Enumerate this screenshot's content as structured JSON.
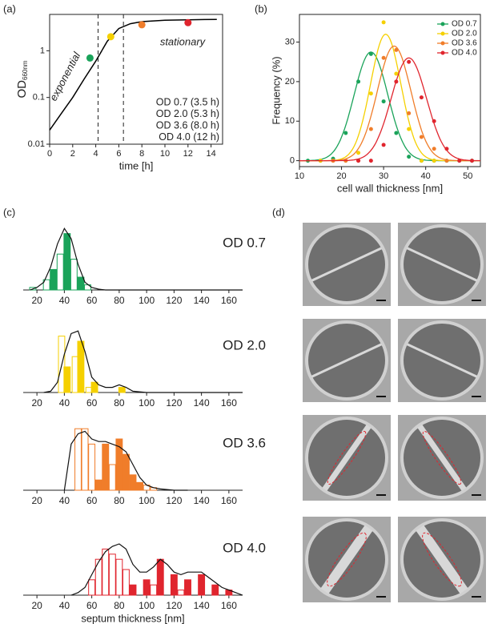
{
  "chart_data": [
    {
      "type": "line",
      "panel_label": "(a)",
      "xlabel": "time [h]",
      "ylabel": "OD",
      "ylabel_sub": "660nm",
      "log_y": true,
      "xlim": [
        0,
        15
      ],
      "ylim": [
        0.01,
        6
      ],
      "xticks": [
        0,
        2,
        4,
        6,
        8,
        10,
        12,
        14
      ],
      "yticks": [
        0.01,
        0.1,
        1
      ],
      "x": [
        0,
        1,
        2,
        3,
        4,
        5,
        6,
        7,
        8,
        10,
        12,
        14.5
      ],
      "values": [
        0.02,
        0.045,
        0.1,
        0.25,
        0.6,
        1.6,
        3.0,
        3.8,
        4.2,
        4.5,
        4.6,
        4.7
      ],
      "color": "#000000",
      "vlines": [
        4.2,
        6.4
      ],
      "annotations": [
        "exponential",
        "stationary"
      ],
      "points": [
        {
          "name": "OD 0.7 (3.5 h)",
          "color": "#1aa35a",
          "x": 3.5,
          "y": 0.7
        },
        {
          "name": "OD 2.0 (5.3 h)",
          "color": "#f5d000",
          "x": 5.3,
          "y": 2.0
        },
        {
          "name": "OD 3.6 (8.0 h)",
          "color": "#f07d2a",
          "x": 8.0,
          "y": 3.6
        },
        {
          "name": "OD 4.0 (12 h)",
          "color": "#e0252e",
          "x": 12,
          "y": 4.0
        }
      ]
    },
    {
      "type": "scatter",
      "panel_label": "(b)",
      "xlabel": "cell wall thickness [nm]",
      "ylabel": "Frequency (%)",
      "xlim": [
        10,
        53
      ],
      "ylim": [
        -1.5,
        37
      ],
      "xticks": [
        10,
        20,
        30,
        40,
        50
      ],
      "yticks": [
        0,
        10,
        20,
        30
      ],
      "series": [
        {
          "name": "OD 0.7",
          "color": "#1aa35a",
          "x": [
            12,
            15,
            18,
            21,
            24,
            27,
            30,
            33,
            36,
            39,
            42,
            45,
            48,
            51
          ],
          "values": [
            0,
            0,
            0.5,
            7,
            20,
            27,
            15,
            7,
            1,
            0,
            0,
            0,
            0,
            0
          ],
          "fit": {
            "center": 27,
            "sigma": 4,
            "peak": 27.5
          }
        },
        {
          "name": "OD 2.0",
          "color": "#f5d000",
          "x": [
            15,
            18,
            21,
            24,
            27,
            30,
            33,
            36,
            39,
            42
          ],
          "values": [
            0,
            0,
            0,
            2,
            17,
            35,
            22,
            8,
            0,
            0
          ],
          "fit": {
            "center": 30.5,
            "sigma": 3.6,
            "peak": 32
          }
        },
        {
          "name": "OD 3.6",
          "color": "#f07d2a",
          "x": [
            18,
            21,
            24,
            27,
            30,
            33,
            36,
            39,
            42,
            45
          ],
          "values": [
            0,
            0,
            0,
            8,
            26,
            28,
            12,
            6,
            3,
            0
          ],
          "fit": {
            "center": 32.5,
            "sigma": 4,
            "peak": 29
          }
        },
        {
          "name": "OD 4.0",
          "color": "#e0252e",
          "x": [
            24,
            27,
            30,
            33,
            36,
            39,
            42,
            45,
            48,
            51
          ],
          "values": [
            0,
            0,
            4,
            20,
            25,
            16,
            10,
            3,
            0,
            0
          ],
          "fit": {
            "center": 36,
            "sigma": 4.2,
            "peak": 26
          }
        }
      ]
    },
    {
      "type": "histogram",
      "panel_label": "(c)",
      "title": "OD 0.7",
      "color": "#1aa35a",
      "xlim": [
        10,
        170
      ],
      "ylim": [
        0,
        25
      ],
      "xticks": [
        20,
        40,
        60,
        80,
        100,
        120,
        140,
        160
      ],
      "open": {
        "x": [
          17,
          27,
          37,
          47,
          57
        ],
        "values": [
          1,
          4,
          14,
          12,
          2
        ]
      },
      "filled": {
        "x": [
          32,
          42,
          52
        ],
        "values": [
          8,
          22,
          5
        ]
      },
      "curve": {
        "x": [
          15,
          20,
          25,
          30,
          35,
          40,
          45,
          50,
          55,
          60,
          65,
          70,
          80,
          90,
          170
        ],
        "values": [
          0,
          1,
          3,
          9,
          18,
          24,
          20,
          10,
          3,
          1,
          0.3,
          0,
          0,
          0,
          0
        ]
      }
    },
    {
      "type": "histogram",
      "title": "OD 2.0",
      "color": "#f5d000",
      "xlim": [
        10,
        170
      ],
      "ylim": [
        0,
        25
      ],
      "xticks": [
        20,
        40,
        60,
        80,
        100,
        120,
        140,
        160
      ],
      "open": {
        "x": [
          38,
          48,
          58
        ],
        "values": [
          22,
          14,
          2
        ]
      },
      "filled": {
        "x": [
          42,
          52,
          62,
          82
        ],
        "values": [
          10,
          20,
          4,
          2
        ]
      },
      "curve": {
        "x": [
          25,
          30,
          35,
          40,
          45,
          50,
          55,
          60,
          65,
          70,
          75,
          80,
          85,
          90,
          100,
          170
        ],
        "values": [
          0,
          0.5,
          4,
          15,
          23,
          24,
          16,
          6,
          3,
          2,
          2,
          3,
          2,
          0.5,
          0,
          0
        ]
      }
    },
    {
      "type": "histogram",
      "title": "OD 3.6",
      "color": "#f07d2a",
      "xlim": [
        10,
        170
      ],
      "ylim": [
        0,
        25
      ],
      "xticks": [
        20,
        40,
        60,
        80,
        100,
        120,
        140,
        160
      ],
      "open": {
        "x": [
          50,
          55,
          60,
          75,
          95,
          100,
          105
        ],
        "values": [
          24,
          24,
          18,
          10,
          3,
          2,
          1
        ]
      },
      "filled": {
        "x": [
          65,
          70,
          80,
          85,
          90,
          95
        ],
        "values": [
          4,
          18,
          20,
          14,
          6,
          3
        ]
      },
      "curve": {
        "x": [
          40,
          45,
          50,
          55,
          60,
          65,
          70,
          75,
          80,
          85,
          90,
          95,
          100,
          105,
          110,
          120,
          130
        ],
        "values": [
          0,
          18,
          22,
          23,
          20,
          19,
          19,
          18,
          17,
          15,
          10,
          5,
          2,
          1,
          0.5,
          0,
          0
        ]
      }
    },
    {
      "type": "histogram",
      "title": "OD 4.0",
      "color": "#e0252e",
      "xlabel": "septum thickness [nm]",
      "xlim": [
        10,
        170
      ],
      "ylim": [
        0,
        25
      ],
      "xticks": [
        20,
        40,
        60,
        80,
        100,
        120,
        140,
        160
      ],
      "open": {
        "x": [
          60,
          65,
          70,
          75,
          80,
          85,
          105,
          125
        ],
        "values": [
          6,
          14,
          18,
          16,
          14,
          10,
          4,
          2
        ]
      },
      "filled": {
        "x": [
          90,
          100,
          110,
          120,
          130,
          140,
          150,
          160
        ],
        "values": [
          4,
          6,
          14,
          8,
          6,
          8,
          4,
          2
        ]
      },
      "curve": {
        "x": [
          45,
          50,
          55,
          60,
          65,
          70,
          75,
          80,
          85,
          90,
          95,
          100,
          105,
          110,
          115,
          120,
          125,
          130,
          135,
          140,
          145,
          150,
          155,
          160,
          165,
          170
        ],
        "values": [
          0,
          1,
          3,
          8,
          13,
          17,
          19,
          20,
          18,
          12,
          9,
          9,
          11,
          14,
          12,
          9,
          8,
          9,
          9,
          9,
          7,
          5,
          3,
          2,
          1,
          0
        ]
      }
    }
  ],
  "panel_d": {
    "panel_label": "(d)"
  }
}
